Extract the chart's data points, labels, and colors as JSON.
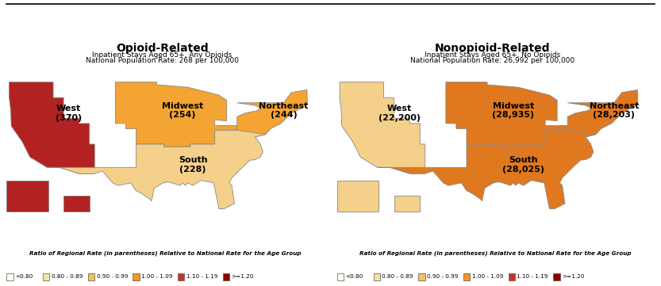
{
  "left_title": "Opioid-Related",
  "left_subtitle1": "Inpatient Stays Aged 65+, Any Opioids",
  "left_subtitle2": "National Population Rate: 268 per 100,000",
  "right_title": "Nonopioid-Related",
  "right_subtitle1": "Inpatient Stays Aged 65+, No Opioids",
  "right_subtitle2": "National Population Rate: 26,992 per 100,000",
  "opioid_region_colors": {
    "West": "#B22222",
    "Midwest": "#F4A432",
    "South": "#F5D08A",
    "Northeast": "#F4A432"
  },
  "nonopioid_region_colors": {
    "West": "#F5D08A",
    "Midwest": "#E07820",
    "South": "#E07820",
    "Northeast": "#E07820"
  },
  "opioid_labels": {
    "West": "West\n(370)",
    "Midwest": "Midwest\n(254)",
    "South": "South\n(228)",
    "Northeast": "Northeast\n(244)"
  },
  "nonopioid_labels": {
    "West": "West\n(22,200)",
    "Midwest": "Midwest\n(28,935)",
    "South": "South\n(28,025)",
    "Northeast": "Northeast\n(28,203)"
  },
  "legend_colors": [
    "#FFFFF0",
    "#F5E8B0",
    "#F5C878",
    "#F4A432",
    "#C83228",
    "#8B0000"
  ],
  "legend_labels": [
    "<0.80",
    "0.80 - 0.89",
    "0.90 - 0.99",
    "1.00 - 1.09",
    "1.10 - 1.19",
    ">=1.20"
  ],
  "edge_color": "#999999",
  "region_edge_color": "#888888",
  "background": "#FFFFFF"
}
